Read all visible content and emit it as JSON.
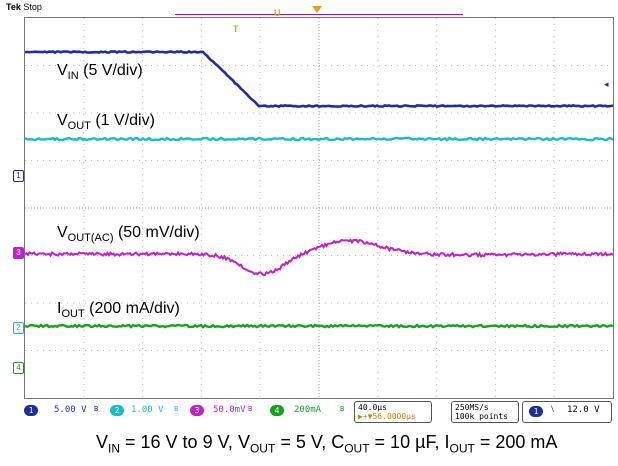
{
  "header": {
    "brand": "Tek",
    "status": "Stop"
  },
  "trigger": {
    "marker": "T",
    "top_marker": "U"
  },
  "traces": {
    "vin": {
      "label_main": "V",
      "label_sub": "IN",
      "label_tail": " (5 V/div)",
      "color": "#1c2ea0"
    },
    "vout": {
      "label_main": "V",
      "label_sub": "OUT",
      "label_tail": " (1 V/div)",
      "color": "#17bdc6"
    },
    "voutac": {
      "label_main": "V",
      "label_sub": "OUT(AC)",
      "label_tail": " (50 mV/div)",
      "color": "#c020c8"
    },
    "iout": {
      "label_main": "I",
      "label_sub": "OUT",
      "label_tail": " (200 mA/div)",
      "color": "#18a020"
    }
  },
  "channel_markers": [
    "1",
    "3",
    "2",
    "4"
  ],
  "status_bar": {
    "ch1": {
      "num": "1",
      "value": "5.00 V",
      "bw": "B"
    },
    "ch2": {
      "num": "2",
      "value": "1.00 V",
      "bw": "B"
    },
    "ch3": {
      "num": "3",
      "value": "50.0mV",
      "suffix": "B"
    },
    "ch4": {
      "num": "4",
      "value": "200mA",
      "bw": "B"
    },
    "timebase": {
      "scale": "40.0µs",
      "offset": "▶+▼56.0000µs"
    },
    "acq": {
      "rate": "250MS/s",
      "points": "100k points"
    },
    "trig": {
      "num": "1",
      "slope": "⧵",
      "level": "12.0 V"
    }
  },
  "caption": {
    "parts": [
      {
        "main": "V",
        "sub": "IN",
        "tail": " = 16 V to 9 V, "
      },
      {
        "main": "V",
        "sub": "OUT",
        "tail": " = 5 V, "
      },
      {
        "main": "C",
        "sub": "OUT",
        "tail": " = 10 µF, "
      },
      {
        "main": "I",
        "sub": "OUT",
        "tail": " = 200 mA"
      }
    ]
  }
}
